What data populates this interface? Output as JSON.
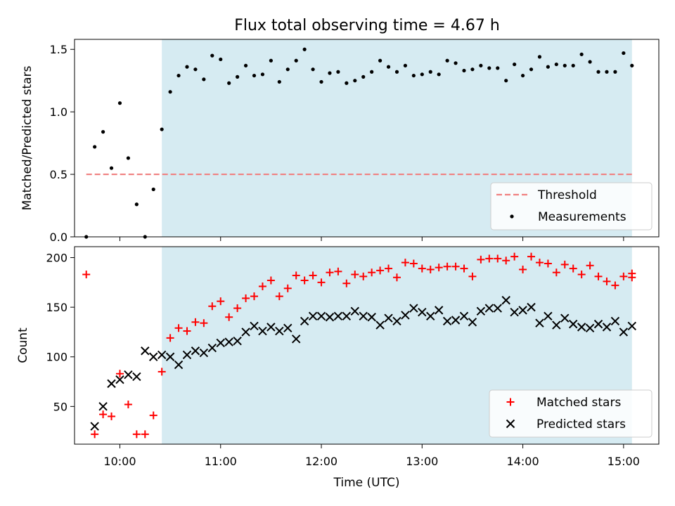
{
  "title": "Flux total observing time = 4.67 h",
  "colors": {
    "shade": "#add8e6",
    "threshold": "#f08080",
    "measurements": "#000000",
    "matched": "#ff0000",
    "predicted": "#000000"
  },
  "chart_data": [
    {
      "type": "scatter",
      "ylabel": "Matched/Predicted stars",
      "xlim": [
        "09:33",
        "15:21"
      ],
      "ylim": [
        0,
        1.58
      ],
      "yticks": [
        "0.0",
        "0.5",
        "1.0",
        "1.5"
      ],
      "shaded_interval": [
        "10:25",
        "15:05"
      ],
      "threshold": {
        "label": "Threshold",
        "value": 0.5,
        "x_range": [
          "09:40",
          "15:05"
        ]
      },
      "legend": {
        "placement": "lower-right",
        "entries": [
          "Threshold",
          "Measurements"
        ]
      },
      "series": [
        {
          "name": "Measurements",
          "x": [
            "09:40",
            "09:45",
            "09:50",
            "09:55",
            "10:00",
            "10:05",
            "10:10",
            "10:15",
            "10:20",
            "10:25",
            "10:30",
            "10:35",
            "10:40",
            "10:45",
            "10:50",
            "10:55",
            "11:00",
            "11:05",
            "11:10",
            "11:15",
            "11:20",
            "11:25",
            "11:30",
            "11:35",
            "11:40",
            "11:45",
            "11:50",
            "11:55",
            "12:00",
            "12:05",
            "12:10",
            "12:15",
            "12:20",
            "12:25",
            "12:30",
            "12:35",
            "12:40",
            "12:45",
            "12:50",
            "12:55",
            "13:00",
            "13:05",
            "13:10",
            "13:15",
            "13:20",
            "13:25",
            "13:30",
            "13:35",
            "13:40",
            "13:45",
            "13:50",
            "13:55",
            "14:00",
            "14:05",
            "14:10",
            "14:15",
            "14:20",
            "14:25",
            "14:30",
            "14:35",
            "14:40",
            "14:45",
            "14:50",
            "14:55",
            "15:00",
            "15:05"
          ],
          "y": [
            0.0,
            0.72,
            0.84,
            0.55,
            1.07,
            0.63,
            0.26,
            0.0,
            0.38,
            0.86,
            1.16,
            1.29,
            1.36,
            1.34,
            1.26,
            1.45,
            1.42,
            1.23,
            1.28,
            1.37,
            1.29,
            1.3,
            1.41,
            1.24,
            1.34,
            1.41,
            1.5,
            1.34,
            1.24,
            1.31,
            1.32,
            1.23,
            1.25,
            1.28,
            1.32,
            1.41,
            1.36,
            1.32,
            1.37,
            1.29,
            1.3,
            1.32,
            1.3,
            1.41,
            1.39,
            1.33,
            1.34,
            1.37,
            1.35,
            1.35,
            1.25,
            1.38,
            1.29,
            1.34,
            1.44,
            1.36,
            1.38,
            1.37,
            1.37,
            1.46,
            1.4,
            1.32,
            1.32,
            1.32,
            1.47,
            1.37
          ]
        }
      ]
    },
    {
      "type": "scatter",
      "xlabel": "Time (UTC)",
      "ylabel": "Count",
      "xlim": [
        "09:33",
        "15:21"
      ],
      "ylim": [
        12,
        211
      ],
      "xticks": [
        "10:00",
        "11:00",
        "12:00",
        "13:00",
        "14:00",
        "15:00"
      ],
      "yticks": [
        "50",
        "100",
        "150",
        "200"
      ],
      "shaded_interval": [
        "10:25",
        "15:05"
      ],
      "legend": {
        "placement": "lower-right",
        "entries": [
          "Matched stars",
          "Predicted stars"
        ]
      },
      "series": [
        {
          "name": "Matched stars",
          "marker": "plus",
          "x": [
            "09:40",
            "09:45",
            "09:50",
            "09:55",
            "10:00",
            "10:05",
            "10:10",
            "10:15",
            "10:20",
            "10:25",
            "10:30",
            "10:35",
            "10:40",
            "10:45",
            "10:50",
            "10:55",
            "11:00",
            "11:05",
            "11:10",
            "11:15",
            "11:20",
            "11:25",
            "11:30",
            "11:35",
            "11:40",
            "11:45",
            "11:50",
            "11:55",
            "12:00",
            "12:05",
            "12:10",
            "12:15",
            "12:20",
            "12:25",
            "12:30",
            "12:35",
            "12:40",
            "12:45",
            "12:50",
            "12:55",
            "13:00",
            "13:05",
            "13:10",
            "13:15",
            "13:20",
            "13:25",
            "13:30",
            "13:35",
            "13:40",
            "13:45",
            "13:50",
            "13:55",
            "14:00",
            "14:05",
            "14:10",
            "14:15",
            "14:20",
            "14:25",
            "14:30",
            "14:35",
            "14:40",
            "14:45",
            "14:50",
            "14:55",
            "15:00",
            "15:05"
          ],
          "y": [
            183,
            22,
            42,
            40,
            83,
            52,
            22,
            22,
            41,
            85,
            119,
            129,
            126,
            135,
            134,
            151,
            156,
            140,
            149,
            159,
            161,
            171,
            177,
            161,
            169,
            182,
            177,
            182,
            175,
            185,
            186,
            174,
            183,
            181,
            185,
            187,
            189,
            180,
            195,
            194,
            189,
            188,
            190,
            191,
            191,
            189,
            181,
            198,
            199,
            199,
            197,
            201,
            188,
            201,
            195,
            194,
            185,
            193,
            189,
            183,
            192,
            181,
            176,
            172,
            181,
            184
          ],
          "extra_point": {
            "x": "15:05",
            "y": 180
          }
        },
        {
          "name": "Predicted stars",
          "marker": "x",
          "x": [
            "09:45",
            "09:50",
            "09:55",
            "10:00",
            "10:05",
            "10:10",
            "10:15",
            "10:20",
            "10:25",
            "10:30",
            "10:35",
            "10:40",
            "10:45",
            "10:50",
            "10:55",
            "11:00",
            "11:05",
            "11:10",
            "11:15",
            "11:20",
            "11:25",
            "11:30",
            "11:35",
            "11:40",
            "11:45",
            "11:50",
            "11:55",
            "12:00",
            "12:05",
            "12:10",
            "12:15",
            "12:20",
            "12:25",
            "12:30",
            "12:35",
            "12:40",
            "12:45",
            "12:50",
            "12:55",
            "13:00",
            "13:05",
            "13:10",
            "13:15",
            "13:20",
            "13:25",
            "13:30",
            "13:35",
            "13:40",
            "13:45",
            "13:50",
            "13:55",
            "14:00",
            "14:05",
            "14:10",
            "14:15",
            "14:20",
            "14:25",
            "14:30",
            "14:35",
            "14:40",
            "14:45",
            "14:50",
            "14:55",
            "15:00",
            "15:05"
          ],
          "y": [
            30,
            50,
            73,
            77,
            82,
            80,
            106,
            100,
            102,
            100,
            92,
            102,
            106,
            104,
            109,
            114,
            115,
            116,
            125,
            131,
            126,
            130,
            126,
            129,
            118,
            136,
            141,
            141,
            140,
            141,
            141,
            146,
            141,
            140,
            132,
            139,
            136,
            142,
            149,
            145,
            141,
            147,
            136,
            137,
            141,
            135,
            146,
            149,
            149,
            157,
            145,
            147,
            150,
            134,
            141,
            132,
            139,
            133,
            130,
            129,
            133,
            130,
            136,
            125,
            131
          ]
        }
      ]
    }
  ]
}
